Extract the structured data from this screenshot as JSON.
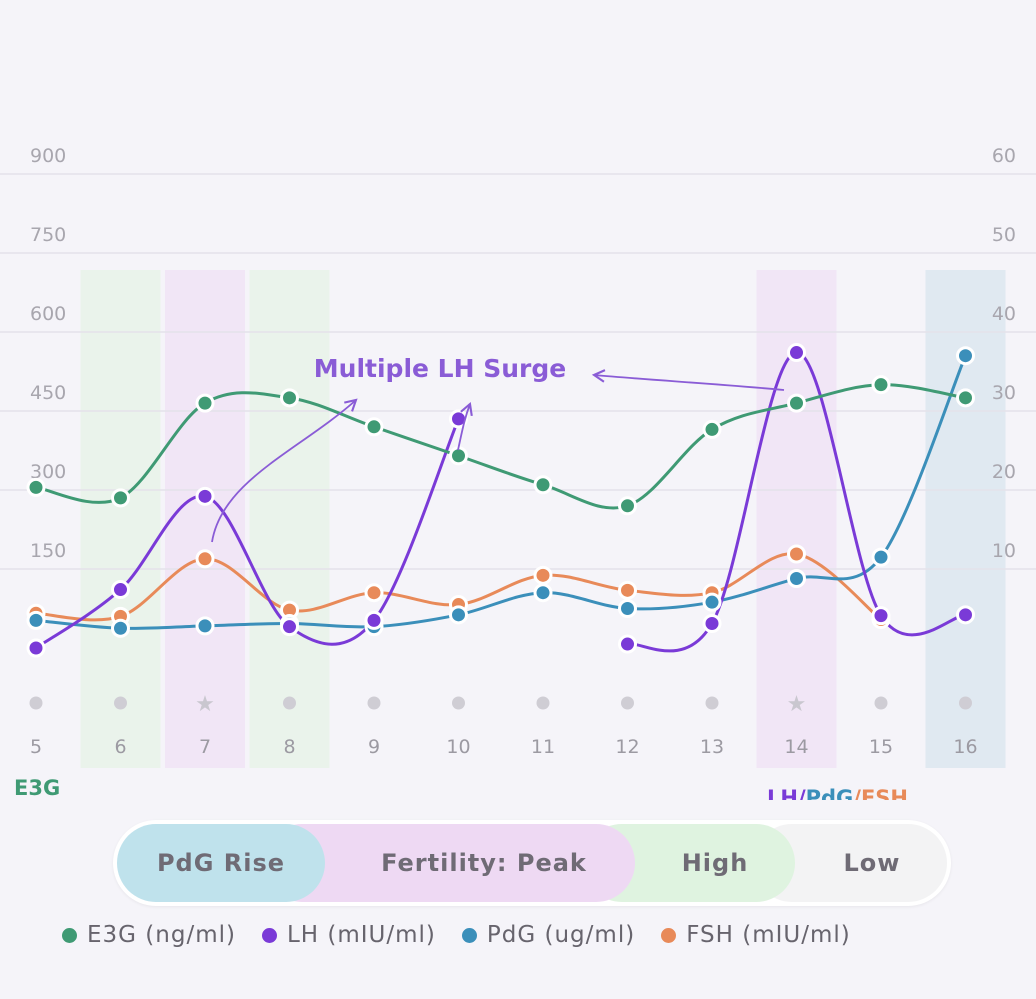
{
  "chart_data": {
    "type": "line",
    "annotation": "Multiple LH Surge",
    "left_axis": {
      "label": "E3G",
      "ticks": [
        "900",
        "750",
        "600",
        "450",
        "300",
        "150"
      ],
      "range": [
        0,
        1050
      ]
    },
    "right_axis": {
      "label_parts": [
        "LH",
        "/",
        "PdG",
        "/",
        "FSH"
      ],
      "ticks": [
        "60",
        "50",
        "40",
        "30",
        "20",
        "10"
      ],
      "range": [
        0,
        70
      ]
    },
    "categories": [
      "5",
      "6",
      "7",
      "8",
      "9",
      "10",
      "11",
      "12",
      "13",
      "14",
      "15",
      "16"
    ],
    "day_markers": [
      "dot",
      "dot",
      "star",
      "dot",
      "dot",
      "dot",
      "dot",
      "dot",
      "dot",
      "star",
      "dot",
      "dot"
    ],
    "day_phases": [
      "none",
      "high",
      "peak",
      "high",
      "none",
      "none",
      "none",
      "none",
      "none",
      "peak",
      "none",
      "pdg"
    ],
    "series": [
      {
        "name": "E3G (ng/ml)",
        "axis": "left",
        "color": "#3f9a74",
        "values": [
          305,
          285,
          465,
          475,
          420,
          365,
          310,
          270,
          415,
          465,
          500,
          475
        ]
      },
      {
        "name": "LH (mIU/ml)",
        "axis": "right",
        "color": "#7a3ad7",
        "values": [
          0,
          7.4,
          19.2,
          2.7,
          3.5,
          29.0,
          null,
          0.5,
          3.1,
          37.4,
          4.1,
          4.2
        ]
      },
      {
        "name": "PdG (ug/ml)",
        "axis": "right",
        "color": "#3b8fba",
        "values": [
          3.5,
          2.5,
          2.8,
          3.1,
          2.7,
          4.2,
          7.0,
          5.0,
          5.8,
          8.8,
          11.5,
          37.0
        ]
      },
      {
        "name": "FSH (mIU/ml)",
        "axis": "right",
        "color": "#e88a59",
        "values": [
          4.4,
          4.0,
          11.3,
          4.8,
          7.0,
          5.5,
          9.2,
          7.3,
          7.0,
          11.9,
          3.6,
          null
        ]
      }
    ]
  },
  "phase_legend": {
    "pdg_rise": "PdG Rise",
    "fertility_peak": "Fertility: Peak",
    "high": "High",
    "low": "Low"
  },
  "series_legend": [
    {
      "label": "E3G (ng/ml)",
      "color": "#3f9a74"
    },
    {
      "label": "LH (mIU/ml)",
      "color": "#7a3ad7"
    },
    {
      "label": "PdG (ug/ml)",
      "color": "#3b8fba"
    },
    {
      "label": "FSH (mIU/ml)",
      "color": "#e88a59"
    }
  ]
}
